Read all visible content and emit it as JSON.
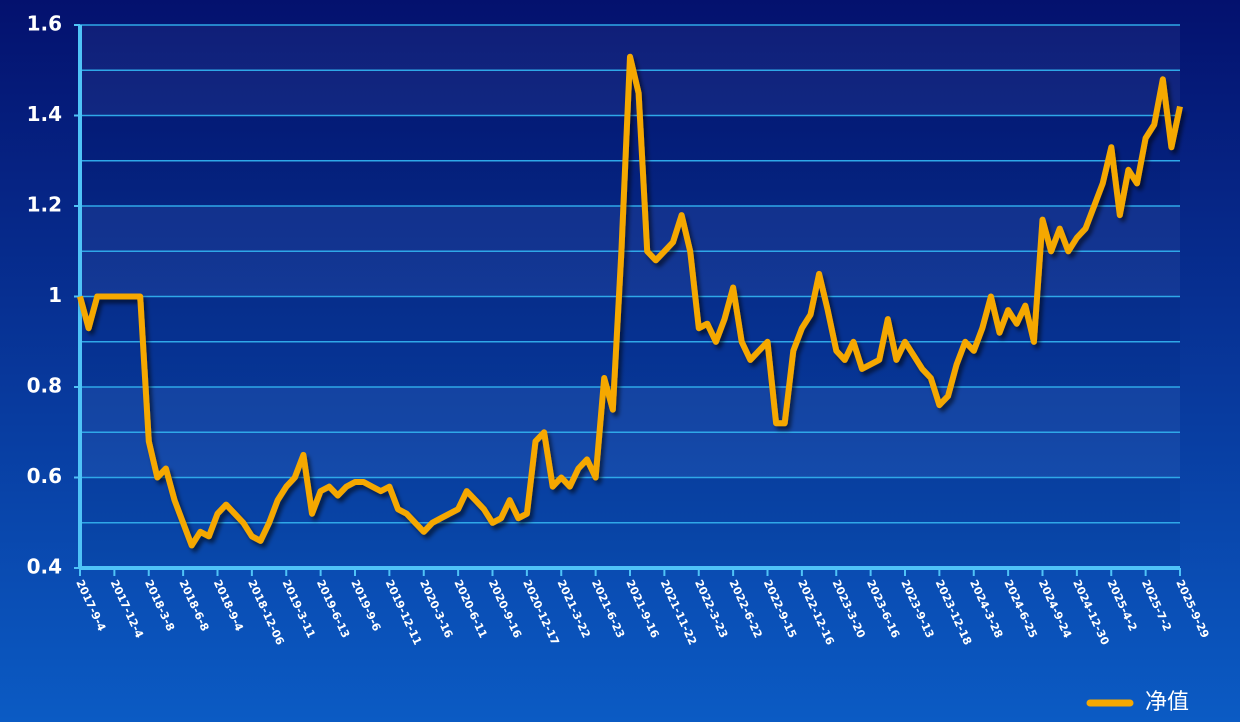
{
  "chart_data": {
    "type": "line",
    "categories": [
      "2017-9-4",
      null,
      null,
      null,
      "2017-12-4",
      null,
      null,
      null,
      "2018-3-8",
      null,
      null,
      null,
      "2018-6-8",
      null,
      null,
      null,
      "2018-9-4",
      null,
      null,
      null,
      "2018-12-06",
      null,
      null,
      null,
      "2019-3-11",
      null,
      null,
      null,
      "2019-6-13",
      null,
      null,
      null,
      "2019-9-6",
      null,
      null,
      null,
      "2019-12-11",
      null,
      null,
      null,
      "2020-3-16",
      null,
      null,
      null,
      "2020-6-11",
      null,
      null,
      null,
      "2020-9-16",
      null,
      null,
      null,
      "2020-12-17",
      null,
      null,
      null,
      "2021-3-22",
      null,
      null,
      null,
      "2021-6-23",
      null,
      null,
      null,
      "2021-9-16",
      null,
      null,
      null,
      "2021-11-22",
      null,
      null,
      null,
      "2022-3-23",
      null,
      null,
      null,
      "2022-6-22",
      null,
      null,
      null,
      "2022-9-15",
      null,
      null,
      null,
      "2022-12-16",
      null,
      null,
      null,
      "2023-3-20",
      null,
      null,
      null,
      "2023-6-16",
      null,
      null,
      null,
      "2023-9-13",
      null,
      null,
      null,
      "2023-12-18",
      null,
      null,
      null,
      "2024-3-28",
      null,
      null,
      null,
      "2024-6-25",
      null,
      null,
      null,
      "2024-9-24",
      null,
      null,
      null,
      "2024-12-30",
      null,
      null,
      null,
      "2025-4-2",
      null,
      null,
      null,
      "2025-7-2",
      null,
      null,
      null,
      "2025-9-29"
    ],
    "series": [
      {
        "name": "净值",
        "color": "#f5a800",
        "values": [
          1.0,
          0.93,
          1.0,
          1.0,
          1.0,
          1.0,
          1.0,
          1.0,
          0.68,
          0.6,
          0.62,
          0.55,
          0.5,
          0.45,
          0.48,
          0.47,
          0.52,
          0.54,
          0.52,
          0.5,
          0.47,
          0.46,
          0.5,
          0.55,
          0.58,
          0.6,
          0.65,
          0.52,
          0.57,
          0.58,
          0.56,
          0.58,
          0.59,
          0.59,
          0.58,
          0.57,
          0.58,
          0.53,
          0.52,
          0.5,
          0.48,
          0.5,
          0.51,
          0.52,
          0.53,
          0.57,
          0.55,
          0.53,
          0.5,
          0.51,
          0.55,
          0.51,
          0.52,
          0.68,
          0.7,
          0.58,
          0.6,
          0.58,
          0.62,
          0.64,
          0.6,
          0.82,
          0.75,
          1.1,
          1.53,
          1.45,
          1.1,
          1.08,
          1.1,
          1.12,
          1.18,
          1.1,
          0.93,
          0.94,
          0.9,
          0.95,
          1.02,
          0.9,
          0.86,
          0.88,
          0.9,
          0.72,
          0.72,
          0.88,
          0.93,
          0.96,
          1.05,
          0.97,
          0.88,
          0.86,
          0.9,
          0.84,
          0.85,
          0.86,
          0.95,
          0.86,
          0.9,
          0.87,
          0.84,
          0.82,
          0.76,
          0.78,
          0.85,
          0.9,
          0.88,
          0.93,
          1.0,
          0.92,
          0.97,
          0.94,
          0.98,
          0.9,
          1.17,
          1.1,
          1.15,
          1.1,
          1.13,
          1.15,
          1.2,
          1.25,
          1.33,
          1.18,
          1.28,
          1.25,
          1.35,
          1.38,
          1.48,
          1.33,
          1.42
        ]
      }
    ],
    "ylim": [
      0.4,
      1.6
    ],
    "yticks": [
      0.4,
      0.6,
      0.8,
      1,
      1.2,
      1.4,
      1.6
    ],
    "grid": true,
    "legend": "bottom-right"
  }
}
